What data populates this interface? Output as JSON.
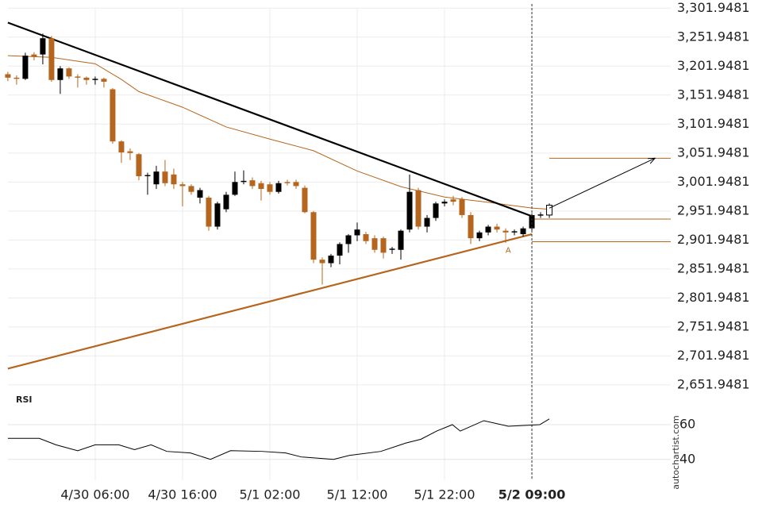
{
  "chart_data": {
    "type": "candlestick",
    "up_color": "#000000",
    "down_color": "#b5651d",
    "xlim": [
      -0.9,
      75.9
    ],
    "ylim": [
      2645,
      3316
    ],
    "xticks": [
      {
        "value": 10,
        "label": "4/30 06:00"
      },
      {
        "value": 20,
        "label": "4/30 16:00"
      },
      {
        "value": 30,
        "label": "5/1 02:00"
      },
      {
        "value": 40,
        "label": "5/1 12:00"
      },
      {
        "value": 50,
        "label": "5/1 22:00"
      },
      {
        "value": 60,
        "label": "5/2 09:00"
      }
    ],
    "bold_xtick": 5,
    "yticks": [
      {
        "value": 3301.9481,
        "label": "3,301.9481"
      },
      {
        "value": 3251.9481,
        "label": "3,251.9481"
      },
      {
        "value": 3201.9481,
        "label": "3,201.9481"
      },
      {
        "value": 3151.9481,
        "label": "3,151.9481"
      },
      {
        "value": 3101.9481,
        "label": "3,101.9481"
      },
      {
        "value": 3051.9481,
        "label": "3,051.9481"
      },
      {
        "value": 3001.9481,
        "label": "3,001.9481"
      },
      {
        "value": 2951.9481,
        "label": "2,951.9481"
      },
      {
        "value": 2901.9481,
        "label": "2,901.9481"
      },
      {
        "value": 2851.9481,
        "label": "2,851.9481"
      },
      {
        "value": 2801.9481,
        "label": "2,801.9481"
      },
      {
        "value": 2751.9481,
        "label": "2,751.9481"
      },
      {
        "value": 2701.9481,
        "label": "2,701.9481"
      },
      {
        "value": 2651.9481,
        "label": "2,651.9481"
      }
    ],
    "grid": true,
    "candles": [
      [
        3188,
        3192,
        3176,
        3182
      ],
      [
        3182,
        3186,
        3170,
        3180
      ],
      [
        3180,
        3225,
        3178,
        3220
      ],
      [
        3222,
        3226,
        3212,
        3218
      ],
      [
        3222,
        3258,
        3205,
        3250
      ],
      [
        3250,
        3254,
        3175,
        3178
      ],
      [
        3178,
        3202,
        3154,
        3198
      ],
      [
        3198,
        3200,
        3180,
        3184
      ],
      [
        3184,
        3188,
        3165,
        3182
      ],
      [
        3182,
        3184,
        3170,
        3178
      ],
      [
        3178,
        3184,
        3170,
        3180
      ],
      [
        3180,
        3182,
        3165,
        3175
      ],
      [
        3162,
        3164,
        3068,
        3072
      ],
      [
        3072,
        3074,
        3035,
        3053
      ],
      [
        3055,
        3060,
        3040,
        3052
      ],
      [
        3050,
        3052,
        3005,
        3012
      ],
      [
        3012,
        3018,
        2980,
        3014
      ],
      [
        2998,
        3030,
        2990,
        3020
      ],
      [
        3020,
        3040,
        2995,
        3000
      ],
      [
        3015,
        3025,
        2990,
        2998
      ],
      [
        2998,
        3002,
        2960,
        2995
      ],
      [
        2995,
        2998,
        2980,
        2985
      ],
      [
        2975,
        2992,
        2965,
        2988
      ],
      [
        2975,
        2978,
        2918,
        2925
      ],
      [
        2925,
        2968,
        2920,
        2965
      ],
      [
        2955,
        2985,
        2950,
        2980
      ],
      [
        2980,
        3020,
        2978,
        3002
      ],
      [
        3002,
        3022,
        2998,
        3004
      ],
      [
        3005,
        3010,
        2990,
        2995
      ],
      [
        3000,
        3004,
        2970,
        2990
      ],
      [
        2998,
        3002,
        2980,
        2985
      ],
      [
        2985,
        3004,
        2982,
        3000
      ],
      [
        3002,
        3006,
        2996,
        3000
      ],
      [
        3002,
        3006,
        2990,
        2995
      ],
      [
        2992,
        2996,
        2948,
        2950
      ],
      [
        2950,
        2952,
        2862,
        2868
      ],
      [
        2868,
        2872,
        2825,
        2862
      ],
      [
        2862,
        2878,
        2855,
        2875
      ],
      [
        2875,
        2898,
        2860,
        2895
      ],
      [
        2895,
        2912,
        2880,
        2910
      ],
      [
        2910,
        2932,
        2900,
        2920
      ],
      [
        2912,
        2916,
        2895,
        2900
      ],
      [
        2905,
        2910,
        2880,
        2885
      ],
      [
        2905,
        2908,
        2870,
        2880
      ],
      [
        2885,
        2890,
        2878,
        2887
      ],
      [
        2885,
        2920,
        2868,
        2918
      ],
      [
        2920,
        3015,
        2915,
        2985
      ],
      [
        2988,
        2992,
        2920,
        2925
      ],
      [
        2925,
        2945,
        2915,
        2940
      ],
      [
        2940,
        2968,
        2935,
        2965
      ],
      [
        2965,
        2972,
        2960,
        2968
      ],
      [
        2972,
        2978,
        2962,
        2968
      ],
      [
        2972,
        2976,
        2940,
        2945
      ],
      [
        2945,
        2950,
        2895,
        2905
      ],
      [
        2905,
        2918,
        2900,
        2915
      ],
      [
        2915,
        2928,
        2910,
        2925
      ],
      [
        2925,
        2930,
        2915,
        2920
      ],
      [
        2918,
        2922,
        2897,
        2915
      ],
      [
        2915,
        2920,
        2910,
        2917
      ],
      [
        2912,
        2925,
        2908,
        2922
      ],
      [
        2922,
        2948,
        2918,
        2945
      ],
      [
        2944,
        2950,
        2940,
        2946
      ]
    ],
    "forecast_candle": [
      2945,
      2965,
      2940,
      2962
    ],
    "moving_average": {
      "color": "#b5651d",
      "x": [
        0,
        5,
        10,
        13,
        15,
        20,
        25,
        30,
        35,
        40,
        45,
        50,
        55,
        60,
        62
      ],
      "values": [
        3220,
        3217,
        3206,
        3179,
        3158,
        3131,
        3097,
        3076,
        3056,
        3021,
        2994,
        2976,
        2967,
        2957,
        2955
      ]
    },
    "lines": [
      {
        "color": "#000000",
        "width": 2.2,
        "x": [
          0,
          60
        ],
        "values": [
          3277,
          2943
        ]
      },
      {
        "color": "#b5651d",
        "width": 2.2,
        "x": [
          0,
          60
        ],
        "values": [
          2680,
          2912
        ]
      },
      {
        "color": "#b5651d",
        "width": 1,
        "x": [
          62,
          75.9
        ],
        "values": [
          3043,
          3043
        ]
      },
      {
        "color": "#b5651d",
        "width": 1,
        "x": [
          60,
          75.9
        ],
        "values": [
          2938,
          2938
        ]
      },
      {
        "color": "#b5651d",
        "width": 1,
        "x": [
          60,
          75.9
        ],
        "values": [
          2899,
          2899
        ]
      }
    ],
    "arrow": {
      "x": [
        62,
        74.1
      ],
      "values": [
        2957,
        3043
      ]
    },
    "cursor_x": 60,
    "annotation": {
      "text": "A",
      "x": 57.3,
      "value": 2892
    },
    "rsi": {
      "label": "RSI",
      "ylim": [
        28,
        76
      ],
      "yticks": [
        60,
        40
      ],
      "x": [
        0,
        3.6,
        5.5,
        8,
        10,
        12.7,
        14.5,
        16.4,
        18.2,
        20.9,
        23.2,
        25.5,
        29.1,
        31.8,
        33.6,
        37.3,
        39.1,
        42.7,
        45.5,
        47.3,
        49.1,
        50.9,
        51.8,
        54.5,
        57.3,
        60.9,
        62
      ],
      "values": [
        52.1,
        52.1,
        48.4,
        45,
        48.4,
        48.4,
        45.6,
        48.4,
        44.6,
        43.7,
        40,
        45,
        44.6,
        43.7,
        41.4,
        40,
        42.3,
        44.6,
        49.3,
        51.6,
        56.3,
        60,
        56.3,
        62.3,
        59.1,
        60,
        63.3
      ]
    },
    "watermark": "autochartist.com"
  }
}
